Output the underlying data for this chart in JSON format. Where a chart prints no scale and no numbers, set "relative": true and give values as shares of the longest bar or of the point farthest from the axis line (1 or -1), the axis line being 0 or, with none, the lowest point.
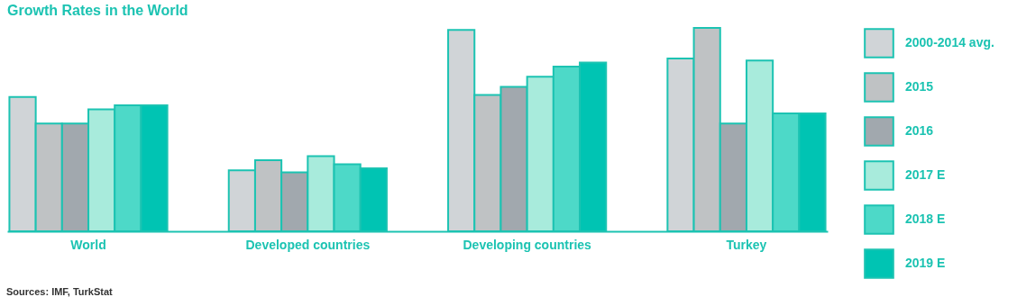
{
  "chart_data": {
    "type": "bar",
    "title": "Growth Rates in the World",
    "relative": true,
    "legend": "right",
    "categories": [
      "World",
      "Developed countries",
      "Developing countries",
      "Turkey"
    ],
    "series": [
      {
        "name": "2000-2014 avg.",
        "color": "#d0d4d7",
        "values": [
          0.66,
          0.3,
          0.99,
          0.85
        ]
      },
      {
        "name": "2015",
        "color": "#bfc2c4",
        "values": [
          0.53,
          0.35,
          0.67,
          1
        ]
      },
      {
        "name": "2016",
        "color": "#a1a8ae",
        "values": [
          0.53,
          0.29,
          0.71,
          0.53
        ]
      },
      {
        "name": "2017 E",
        "color": "#a8ebdc",
        "values": [
          0.6,
          0.37,
          0.76,
          0.84
        ]
      },
      {
        "name": "2018 E",
        "color": "#4dd9c8",
        "values": [
          0.62,
          0.33,
          0.81,
          0.58
        ]
      },
      {
        "name": "2019 E",
        "color": "#00c4b3",
        "values": [
          0.62,
          0.31,
          0.83,
          0.58
        ]
      }
    ],
    "annotations": [
      "Sources: IMF, TurkStat"
    ]
  }
}
